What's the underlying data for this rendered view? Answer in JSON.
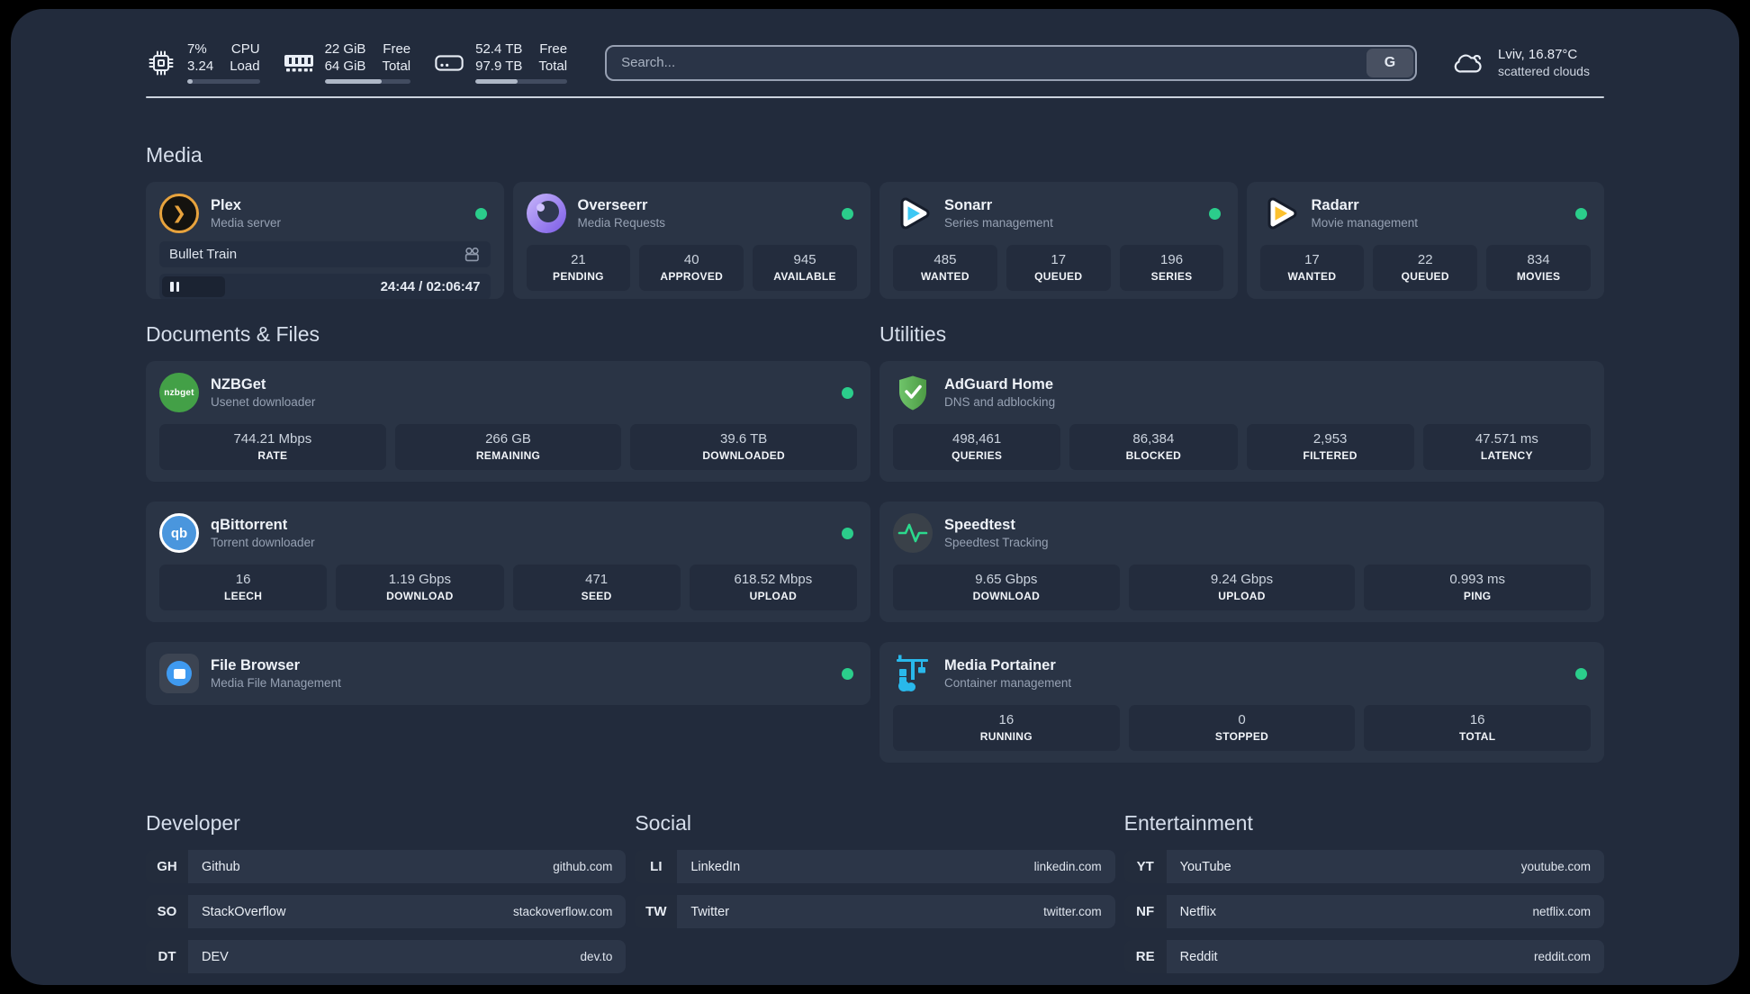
{
  "header": {
    "metrics": [
      {
        "icon": "cpu-icon",
        "value_top": "7%",
        "value_bottom": "3.24",
        "label_top": "CPU",
        "label_bottom": "Load",
        "progress_pct": 7
      },
      {
        "icon": "ram-icon",
        "value_top": "22 GiB",
        "value_bottom": "64 GiB",
        "label_top": "Free",
        "label_bottom": "Total",
        "progress_pct": 66
      },
      {
        "icon": "disk-icon",
        "value_top": "52.4 TB",
        "value_bottom": "97.9 TB",
        "label_top": "Free",
        "label_bottom": "Total",
        "progress_pct": 46
      }
    ],
    "search": {
      "placeholder": "Search...",
      "button_label": "G"
    },
    "weather": {
      "icon": "cloud-icon",
      "location": "Lviv, 16.87°C",
      "condition": "scattered clouds"
    }
  },
  "icons": {
    "qb_text": "qb",
    "nzbget_text": "nzbget"
  },
  "colors": {
    "page_bg": "#222b3c",
    "card_bg": "#2a3445",
    "stat_bg": "#232c3d",
    "status_online": "#2bcd8b",
    "plex_amber": "#e8a33d",
    "sonarr_blue": "#3ec8f4",
    "radarr_yellow": "#fcc12e",
    "nzbget_green": "#43a047",
    "qbittorrent_blue": "#4a96dd",
    "adguard_green": "#5aad4e",
    "speedtest_green": "#2bd98d",
    "portainer_blue": "#29b8eb"
  },
  "media": {
    "title": "Media",
    "apps": [
      {
        "name": "Plex",
        "subtitle": "Media server",
        "status": "online",
        "now_playing": {
          "title": "Bullet Train",
          "time": "24:44 / 02:06:47",
          "state": "paused",
          "progress_pct": 19.5
        }
      },
      {
        "name": "Overseerr",
        "subtitle": "Media Requests",
        "status": "online",
        "stats": [
          {
            "value": "21",
            "label": "PENDING"
          },
          {
            "value": "40",
            "label": "APPROVED"
          },
          {
            "value": "945",
            "label": "AVAILABLE"
          }
        ]
      },
      {
        "name": "Sonarr",
        "subtitle": "Series management",
        "status": "online",
        "stats": [
          {
            "value": "485",
            "label": "WANTED"
          },
          {
            "value": "17",
            "label": "QUEUED"
          },
          {
            "value": "196",
            "label": "SERIES"
          }
        ]
      },
      {
        "name": "Radarr",
        "subtitle": "Movie management",
        "status": "online",
        "stats": [
          {
            "value": "17",
            "label": "WANTED"
          },
          {
            "value": "22",
            "label": "QUEUED"
          },
          {
            "value": "834",
            "label": "MOVIES"
          }
        ]
      }
    ]
  },
  "documents": {
    "title": "Documents & Files",
    "apps": [
      {
        "name": "NZBGet",
        "subtitle": "Usenet downloader",
        "status": "online",
        "stats": [
          {
            "value": "744.21 Mbps",
            "label": "RATE"
          },
          {
            "value": "266 GB",
            "label": "REMAINING"
          },
          {
            "value": "39.6 TB",
            "label": "DOWNLOADED"
          }
        ]
      },
      {
        "name": "qBittorrent",
        "subtitle": "Torrent downloader",
        "status": "online",
        "stats": [
          {
            "value": "16",
            "label": "LEECH"
          },
          {
            "value": "1.19 Gbps",
            "label": "DOWNLOAD"
          },
          {
            "value": "471",
            "label": "SEED"
          },
          {
            "value": "618.52 Mbps",
            "label": "UPLOAD"
          }
        ]
      },
      {
        "name": "File Browser",
        "subtitle": "Media File Management",
        "status": "online"
      }
    ]
  },
  "utilities": {
    "title": "Utilities",
    "apps": [
      {
        "name": "AdGuard Home",
        "subtitle": "DNS and adblocking",
        "stats": [
          {
            "value": "498,461",
            "label": "QUERIES"
          },
          {
            "value": "86,384",
            "label": "BLOCKED"
          },
          {
            "value": "2,953",
            "label": "FILTERED"
          },
          {
            "value": "47.571 ms",
            "label": "LATENCY"
          }
        ]
      },
      {
        "name": "Speedtest",
        "subtitle": "Speedtest Tracking",
        "stats": [
          {
            "value": "9.65 Gbps",
            "label": "DOWNLOAD"
          },
          {
            "value": "9.24 Gbps",
            "label": "UPLOAD"
          },
          {
            "value": "0.993 ms",
            "label": "PING"
          }
        ]
      },
      {
        "name": "Media Portainer",
        "subtitle": "Container management",
        "status": "online",
        "stats": [
          {
            "value": "16",
            "label": "RUNNING"
          },
          {
            "value": "0",
            "label": "STOPPED"
          },
          {
            "value": "16",
            "label": "TOTAL"
          }
        ]
      }
    ]
  },
  "links": {
    "developer": {
      "title": "Developer",
      "items": [
        {
          "tag": "GH",
          "name": "Github",
          "url": "github.com"
        },
        {
          "tag": "SO",
          "name": "StackOverflow",
          "url": "stackoverflow.com"
        },
        {
          "tag": "DT",
          "name": "DEV",
          "url": "dev.to"
        }
      ]
    },
    "social": {
      "title": "Social",
      "items": [
        {
          "tag": "LI",
          "name": "LinkedIn",
          "url": "linkedin.com"
        },
        {
          "tag": "TW",
          "name": "Twitter",
          "url": "twitter.com"
        }
      ]
    },
    "entertainment": {
      "title": "Entertainment",
      "items": [
        {
          "tag": "YT",
          "name": "YouTube",
          "url": "youtube.com"
        },
        {
          "tag": "NF",
          "name": "Netflix",
          "url": "netflix.com"
        },
        {
          "tag": "RE",
          "name": "Reddit",
          "url": "reddit.com"
        }
      ]
    }
  }
}
